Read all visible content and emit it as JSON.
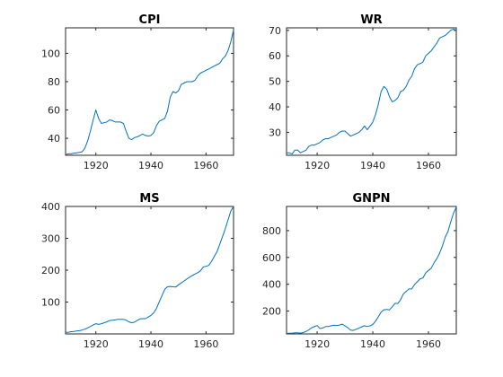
{
  "line_color": "#0072BD",
  "chart_data": [
    {
      "type": "line",
      "title": "CPI",
      "xlabel": "",
      "ylabel": "",
      "xlim": [
        1909,
        1970
      ],
      "ylim": [
        28,
        118
      ],
      "xticks": [
        1920,
        1940,
        1960
      ],
      "yticks": [
        40,
        60,
        80,
        100
      ],
      "grid": false,
      "x": [
        1909,
        1910,
        1911,
        1912,
        1913,
        1914,
        1915,
        1916,
        1917,
        1918,
        1919,
        1920,
        1921,
        1922,
        1923,
        1924,
        1925,
        1926,
        1927,
        1928,
        1929,
        1930,
        1931,
        1932,
        1933,
        1934,
        1935,
        1936,
        1937,
        1938,
        1939,
        1940,
        1941,
        1942,
        1943,
        1944,
        1945,
        1946,
        1947,
        1948,
        1949,
        1950,
        1951,
        1952,
        1953,
        1954,
        1955,
        1956,
        1957,
        1958,
        1959,
        1960,
        1961,
        1962,
        1963,
        1964,
        1965,
        1966,
        1967,
        1968,
        1969,
        1970
      ],
      "values": [
        28.5,
        29,
        29,
        29.5,
        29.8,
        30,
        30.5,
        33,
        38,
        45,
        53,
        60,
        54,
        50.5,
        51,
        51.5,
        53,
        52.5,
        51.5,
        51.5,
        51.5,
        50.5,
        45,
        40,
        39,
        40.5,
        41,
        42,
        43,
        42,
        41.5,
        42,
        44,
        49,
        52,
        53,
        54,
        59,
        69,
        73,
        72,
        73.5,
        78,
        79,
        80,
        80,
        80,
        81,
        84,
        86,
        87,
        88,
        89,
        90,
        91,
        92,
        93,
        96,
        98,
        102,
        108,
        116.5
      ]
    },
    {
      "type": "line",
      "title": "WR",
      "xlabel": "",
      "ylabel": "",
      "xlim": [
        1909,
        1970
      ],
      "ylim": [
        21,
        71
      ],
      "xticks": [
        1920,
        1940,
        1960
      ],
      "yticks": [
        30,
        40,
        50,
        60,
        70
      ],
      "grid": false,
      "x": [
        1909,
        1910,
        1911,
        1912,
        1913,
        1914,
        1915,
        1916,
        1917,
        1918,
        1919,
        1920,
        1921,
        1922,
        1923,
        1924,
        1925,
        1926,
        1927,
        1928,
        1929,
        1930,
        1931,
        1932,
        1933,
        1934,
        1935,
        1936,
        1937,
        1938,
        1939,
        1940,
        1941,
        1942,
        1943,
        1944,
        1945,
        1946,
        1947,
        1948,
        1949,
        1950,
        1951,
        1952,
        1953,
        1954,
        1955,
        1956,
        1957,
        1958,
        1959,
        1960,
        1961,
        1962,
        1963,
        1964,
        1965,
        1966,
        1967,
        1968,
        1969,
        1970
      ],
      "values": [
        22,
        22,
        21.5,
        23,
        23,
        22,
        22.5,
        23,
        24.5,
        25,
        25,
        25.5,
        26,
        27,
        27.5,
        27.5,
        28,
        28.5,
        29,
        30,
        30.5,
        30.5,
        29.5,
        28.5,
        29,
        29.5,
        30,
        31,
        32.5,
        31,
        32.5,
        34,
        37,
        41,
        46,
        48,
        47,
        44,
        42,
        42.5,
        43.5,
        46,
        46.5,
        48,
        50.5,
        52,
        55,
        56.5,
        57,
        57.5,
        60,
        61,
        62,
        63.5,
        65,
        67,
        67.5,
        68,
        69,
        70,
        70.5,
        70
      ]
    },
    {
      "type": "line",
      "title": "MS",
      "xlabel": "",
      "ylabel": "",
      "xlim": [
        1909,
        1970
      ],
      "ylim": [
        0,
        400
      ],
      "xticks": [
        1920,
        1940,
        1960
      ],
      "yticks": [
        100,
        200,
        300,
        400
      ],
      "grid": false,
      "x": [
        1909,
        1910,
        1911,
        1912,
        1913,
        1914,
        1915,
        1916,
        1917,
        1918,
        1919,
        1920,
        1921,
        1922,
        1923,
        1924,
        1925,
        1926,
        1927,
        1928,
        1929,
        1930,
        1931,
        1932,
        1933,
        1934,
        1935,
        1936,
        1937,
        1938,
        1939,
        1940,
        1941,
        1942,
        1943,
        1944,
        1945,
        1946,
        1947,
        1948,
        1949,
        1950,
        1951,
        1952,
        1953,
        1954,
        1955,
        1956,
        1957,
        1958,
        1959,
        1960,
        1961,
        1962,
        1963,
        1964,
        1965,
        1966,
        1967,
        1968,
        1969,
        1970
      ],
      "values": [
        5,
        5,
        7,
        8,
        9,
        10,
        12,
        15,
        19,
        23,
        28,
        32,
        30,
        32,
        35,
        38,
        42,
        43,
        44,
        46,
        46,
        46,
        43,
        38,
        35,
        37,
        42,
        47,
        48,
        48,
        53,
        58,
        66,
        80,
        100,
        120,
        140,
        148,
        149,
        148,
        147,
        154,
        160,
        166,
        172,
        178,
        183,
        188,
        192,
        198,
        210,
        212,
        215,
        228,
        243,
        258,
        282,
        305,
        330,
        358,
        385,
        400
      ]
    },
    {
      "type": "line",
      "title": "GNPN",
      "xlabel": "",
      "ylabel": "",
      "xlim": [
        1909,
        1970
      ],
      "ylim": [
        30,
        980
      ],
      "xticks": [
        1920,
        1940,
        1960
      ],
      "yticks": [
        200,
        400,
        600,
        800
      ],
      "grid": false,
      "x": [
        1909,
        1910,
        1911,
        1912,
        1913,
        1914,
        1915,
        1916,
        1917,
        1918,
        1919,
        1920,
        1921,
        1922,
        1923,
        1924,
        1925,
        1926,
        1927,
        1928,
        1929,
        1930,
        1931,
        1932,
        1933,
        1934,
        1935,
        1936,
        1937,
        1938,
        1939,
        1940,
        1941,
        1942,
        1943,
        1944,
        1945,
        1946,
        1947,
        1948,
        1949,
        1950,
        1951,
        1952,
        1953,
        1954,
        1955,
        1956,
        1957,
        1958,
        1959,
        1960,
        1961,
        1962,
        1963,
        1964,
        1965,
        1966,
        1967,
        1968,
        1969,
        1970
      ],
      "values": [
        34,
        35,
        35,
        38,
        39,
        36,
        40,
        48,
        60,
        76,
        84,
        92,
        70,
        74,
        85,
        85,
        90,
        95,
        93,
        96,
        103,
        90,
        76,
        59,
        56,
        65,
        73,
        83,
        91,
        85,
        91,
        100,
        125,
        158,
        192,
        210,
        212,
        209,
        232,
        258,
        257,
        285,
        328,
        347,
        365,
        365,
        398,
        419,
        441,
        447,
        484,
        503,
        520,
        560,
        590,
        632,
        685,
        750,
        793,
        865,
        930,
        975
      ]
    }
  ]
}
